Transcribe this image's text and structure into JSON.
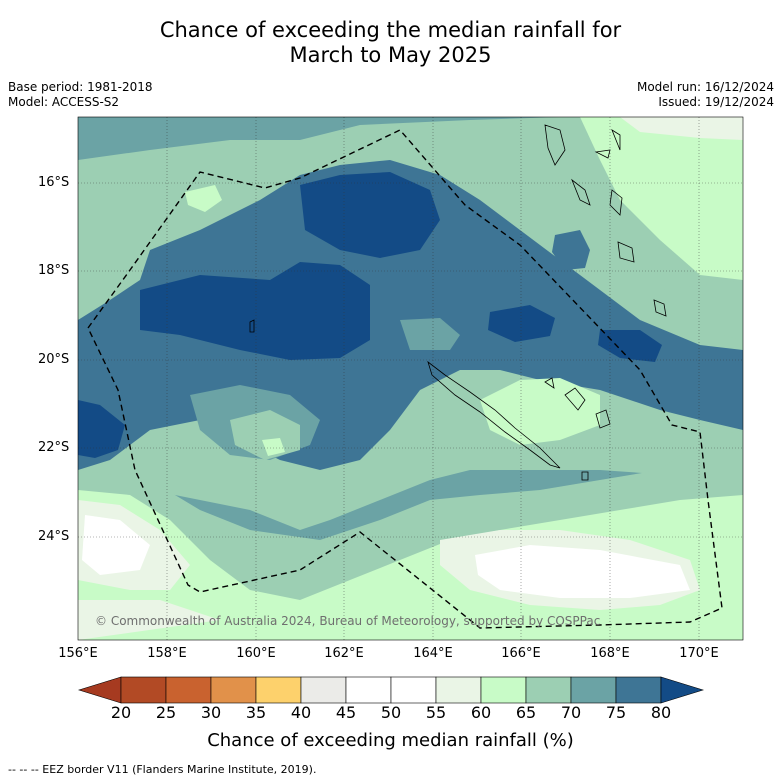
{
  "title_line1": "Chance of exceeding the median rainfall for",
  "title_line2": "March to May 2025",
  "base_period": "Base period: 1981-2018",
  "model": "Model: ACCESS-S2",
  "model_run": "Model run: 16/12/2024",
  "issued": "Issued: 19/12/2024",
  "copyright": "© Commonwealth of Australia 2024, Bureau of Meteorology, supported by COSPPac",
  "lat_labels": [
    "16°S",
    "18°S",
    "20°S",
    "22°S",
    "24°S"
  ],
  "lon_labels": [
    "156°E",
    "158°E",
    "160°E",
    "162°E",
    "164°E",
    "166°E",
    "168°E",
    "170°E"
  ],
  "colorbar": {
    "labels": [
      "20",
      "25",
      "30",
      "35",
      "40",
      "45",
      "50",
      "55",
      "60",
      "65",
      "70",
      "75",
      "80"
    ],
    "colors": [
      "#a63a20",
      "#b24a25",
      "#c9622f",
      "#e1914a",
      "#fdd16c",
      "#ebebe8",
      "#ffffff",
      "#ffffff",
      "#eaf5e6",
      "#c8fbc7",
      "#9ccfb3",
      "#6ba3a5",
      "#3e7595",
      "#134b86"
    ],
    "title": "Chance of exceeding median rainfall (%)"
  },
  "footnote": "--  --  -- EEZ border V11 (Flanders Marine Institute, 2019)."
}
